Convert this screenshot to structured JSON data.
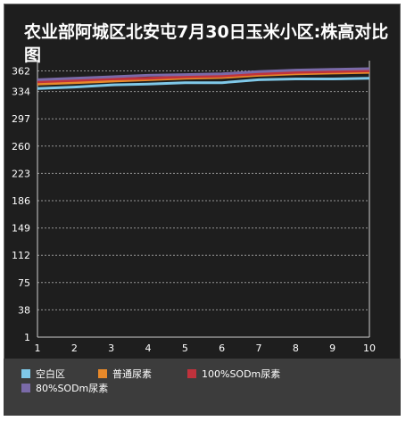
{
  "chart_data": {
    "type": "line",
    "title": "农业部阿城区北安屯7月30日玉米小区:株高对比图",
    "xlabel": "",
    "ylabel": "",
    "x": [
      1,
      2,
      3,
      4,
      5,
      6,
      7,
      8,
      9,
      10
    ],
    "y_ticks": [
      1,
      38,
      75,
      112,
      149,
      186,
      223,
      260,
      297,
      334,
      362
    ],
    "ylim": [
      1,
      371
    ],
    "grid": "horizontal dashed",
    "legend_position": "bottom",
    "series": [
      {
        "name": "空白区",
        "color": "#7fc8e8",
        "values": [
          338,
          340,
          343,
          344,
          346,
          346,
          350,
          351,
          351,
          352
        ]
      },
      {
        "name": "普通尿素",
        "color": "#e8892a",
        "values": [
          344,
          346,
          348,
          350,
          352,
          353,
          356,
          358,
          359,
          360
        ]
      },
      {
        "name": "100%SODm尿素",
        "color": "#c0323c",
        "values": [
          347,
          349,
          351,
          352,
          354,
          355,
          358,
          360,
          361,
          362
        ]
      },
      {
        "name": "80%SODm尿素",
        "color": "#7a6aa8",
        "values": [
          350,
          352,
          354,
          356,
          357,
          358,
          361,
          363,
          364,
          365
        ]
      }
    ]
  }
}
